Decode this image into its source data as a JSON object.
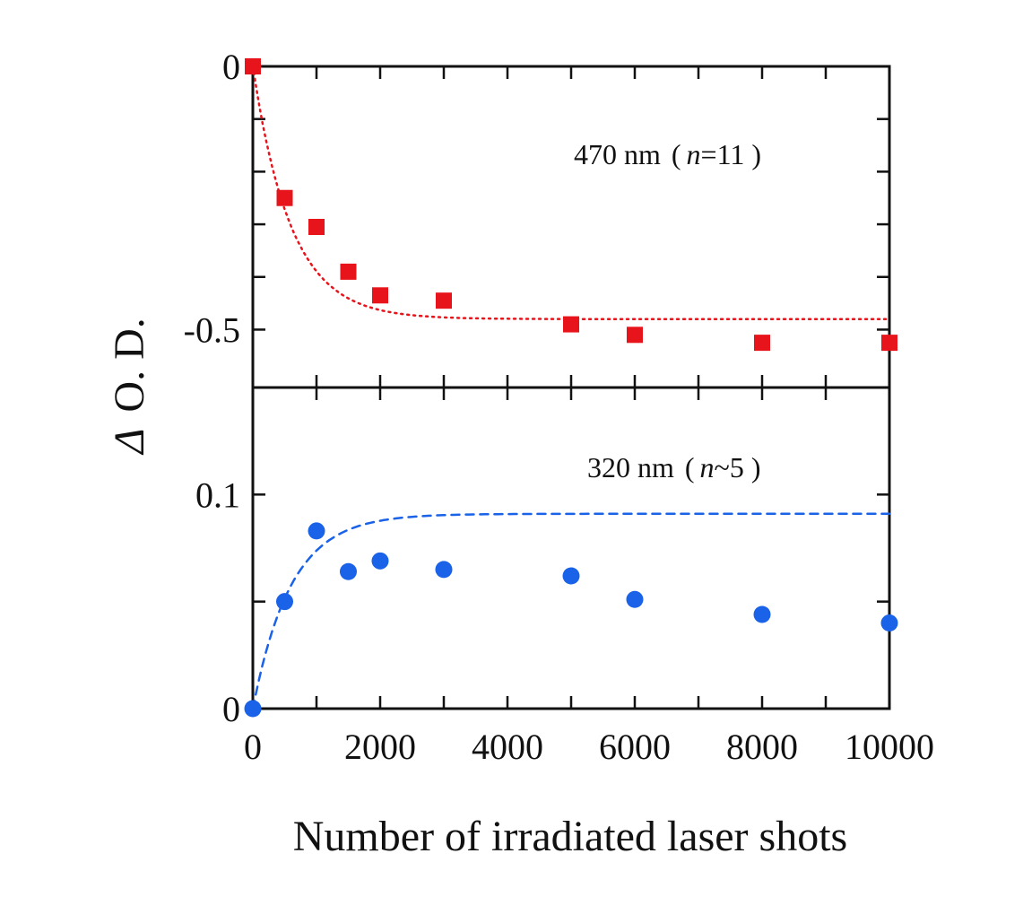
{
  "chart_data": {
    "type": "scatter",
    "xlabel": "Number of irradiated laser shots",
    "ylabel": "Δ O. D.",
    "ylabel_symbol": "Δ",
    "ylabel_text": "O. D.",
    "xlim": [
      0,
      10000
    ],
    "x_ticks": [
      0,
      2000,
      4000,
      6000,
      8000,
      10000
    ],
    "x_tick_labels": [
      "0",
      "2000",
      "4000",
      "6000",
      "8000",
      "10000"
    ],
    "panels": [
      {
        "name": "470 nm",
        "annotation": {
          "wavelength": "470 nm",
          "open": "(",
          "var": "n",
          "rel": "=11",
          "close": ")"
        },
        "ylim": [
          -0.61,
          0.0
        ],
        "y_tick_labels": [
          {
            "value": 0.0,
            "label": "0"
          },
          {
            "value": -0.5,
            "label": "-0.5"
          }
        ],
        "y_minor_ticks": [
          -0.1,
          -0.2,
          -0.3,
          -0.4,
          -0.5
        ],
        "marker": "square",
        "color": "#e8141c",
        "x": [
          0,
          500,
          1000,
          1500,
          2000,
          3000,
          5000,
          6000,
          8000,
          10000
        ],
        "y": [
          0.0,
          -0.25,
          -0.305,
          -0.39,
          -0.435,
          -0.445,
          -0.49,
          -0.51,
          -0.525,
          -0.525
        ],
        "fit": {
          "style": "dotted",
          "amplitude": -0.48,
          "tau": 600
        }
      },
      {
        "name": "320 nm",
        "annotation": {
          "wavelength": "320 nm",
          "open": "(",
          "var": "n",
          "rel": "~5",
          "close": ")"
        },
        "ylim": [
          0.0,
          0.15
        ],
        "y_tick_labels": [
          {
            "value": 0.0,
            "label": "0"
          },
          {
            "value": 0.1,
            "label": "0.1"
          }
        ],
        "y_minor_ticks": [
          0.05,
          0.1
        ],
        "marker": "circle",
        "color": "#1a62e8",
        "x": [
          0,
          500,
          1000,
          1500,
          2000,
          3000,
          5000,
          6000,
          8000,
          10000
        ],
        "y": [
          0.0,
          0.05,
          0.083,
          0.064,
          0.069,
          0.065,
          0.062,
          0.051,
          0.044,
          0.04
        ],
        "fit": {
          "style": "dashed",
          "amplitude": 0.091,
          "tau": 600
        }
      }
    ]
  }
}
